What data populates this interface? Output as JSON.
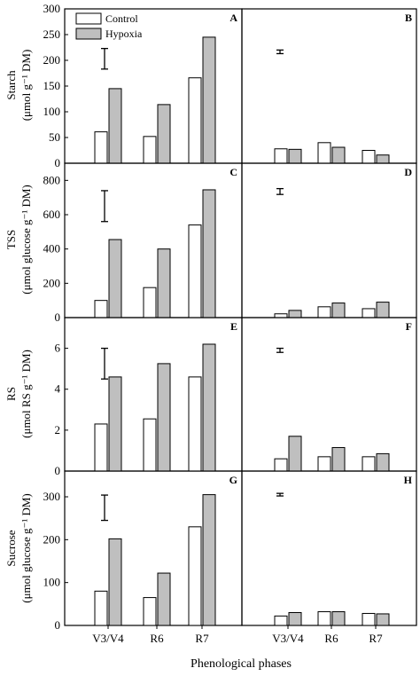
{
  "legend": {
    "control": "Control",
    "hypoxia": "Hypoxia"
  },
  "colors": {
    "control": "#ffffff",
    "hypoxia": "#bfbfbf",
    "stroke": "#000000"
  },
  "x_axis_label": "Phenological phases",
  "x_categories": [
    "V3/V4",
    "R6",
    "R7"
  ],
  "rows": [
    {
      "ylabel_main": "Starch",
      "ylabel_unit": "(μmol g⁻¹ DM)"
    },
    {
      "ylabel_main": "TSS",
      "ylabel_unit": "(μmol glucose g⁻¹ DM)"
    },
    {
      "ylabel_main": "RS",
      "ylabel_unit": "(μmol RS g⁻¹ DM)"
    },
    {
      "ylabel_main": "Sucrose",
      "ylabel_unit": "(μmol glucose g⁻¹ DM)"
    }
  ],
  "chart_data": [
    {
      "type": "bar",
      "panel": "A",
      "categories": [
        "V3/V4",
        "R6",
        "R7"
      ],
      "series": [
        {
          "name": "Control",
          "values": [
            61,
            52,
            166
          ]
        },
        {
          "name": "Hypoxia",
          "values": [
            145,
            114,
            245
          ]
        }
      ],
      "ylim": [
        0,
        300
      ],
      "yticks": [
        0,
        50,
        100,
        150,
        200,
        250,
        300
      ],
      "error_bar": [
        183,
        223
      ]
    },
    {
      "type": "bar",
      "panel": "B",
      "categories": [
        "V3/V4",
        "R6",
        "R7"
      ],
      "series": [
        {
          "name": "Control",
          "values": [
            28,
            40,
            25
          ]
        },
        {
          "name": "Hypoxia",
          "values": [
            27,
            31,
            16
          ]
        }
      ],
      "ylim": [
        0,
        300
      ],
      "error_bar": [
        213,
        220
      ]
    },
    {
      "type": "bar",
      "panel": "C",
      "categories": [
        "V3/V4",
        "R6",
        "R7"
      ],
      "series": [
        {
          "name": "Control",
          "values": [
            100,
            175,
            540
          ]
        },
        {
          "name": "Hypoxia",
          "values": [
            455,
            400,
            745
          ]
        }
      ],
      "ylim": [
        0,
        900
      ],
      "yticks": [
        0,
        200,
        400,
        600,
        800
      ],
      "error_bar": [
        560,
        740
      ]
    },
    {
      "type": "bar",
      "panel": "D",
      "categories": [
        "V3/V4",
        "R6",
        "R7"
      ],
      "series": [
        {
          "name": "Control",
          "values": [
            22,
            63,
            52
          ]
        },
        {
          "name": "Hypoxia",
          "values": [
            42,
            85,
            90
          ]
        }
      ],
      "ylim": [
        0,
        900
      ],
      "error_bar": [
        718,
        752
      ]
    },
    {
      "type": "bar",
      "panel": "E",
      "categories": [
        "V3/V4",
        "R6",
        "R7"
      ],
      "series": [
        {
          "name": "Control",
          "values": [
            2.3,
            2.55,
            4.6
          ]
        },
        {
          "name": "Hypoxia",
          "values": [
            4.6,
            5.25,
            6.2
          ]
        }
      ],
      "ylim": [
        0,
        7.5
      ],
      "yticks": [
        0,
        2,
        4,
        6
      ],
      "error_bar": [
        4.5,
        6.0
      ]
    },
    {
      "type": "bar",
      "panel": "F",
      "categories": [
        "V3/V4",
        "R6",
        "R7"
      ],
      "series": [
        {
          "name": "Control",
          "values": [
            0.6,
            0.7,
            0.7
          ]
        },
        {
          "name": "Hypoxia",
          "values": [
            1.7,
            1.15,
            0.85
          ]
        }
      ],
      "ylim": [
        0,
        7.5
      ],
      "error_bar": [
        5.8,
        6.0
      ]
    },
    {
      "type": "bar",
      "panel": "G",
      "categories": [
        "V3/V4",
        "R6",
        "R7"
      ],
      "series": [
        {
          "name": "Control",
          "values": [
            80,
            65,
            230
          ]
        },
        {
          "name": "Hypoxia",
          "values": [
            202,
            122,
            305
          ]
        }
      ],
      "ylim": [
        0,
        360
      ],
      "yticks": [
        0,
        100,
        200,
        300
      ],
      "error_bar": [
        245,
        304
      ]
    },
    {
      "type": "bar",
      "panel": "H",
      "categories": [
        "V3/V4",
        "R6",
        "R7"
      ],
      "series": [
        {
          "name": "Control",
          "values": [
            22,
            32,
            28
          ]
        },
        {
          "name": "Hypoxia",
          "values": [
            30,
            32,
            27
          ]
        }
      ],
      "ylim": [
        0,
        360
      ],
      "error_bar": [
        302,
        308
      ]
    }
  ]
}
